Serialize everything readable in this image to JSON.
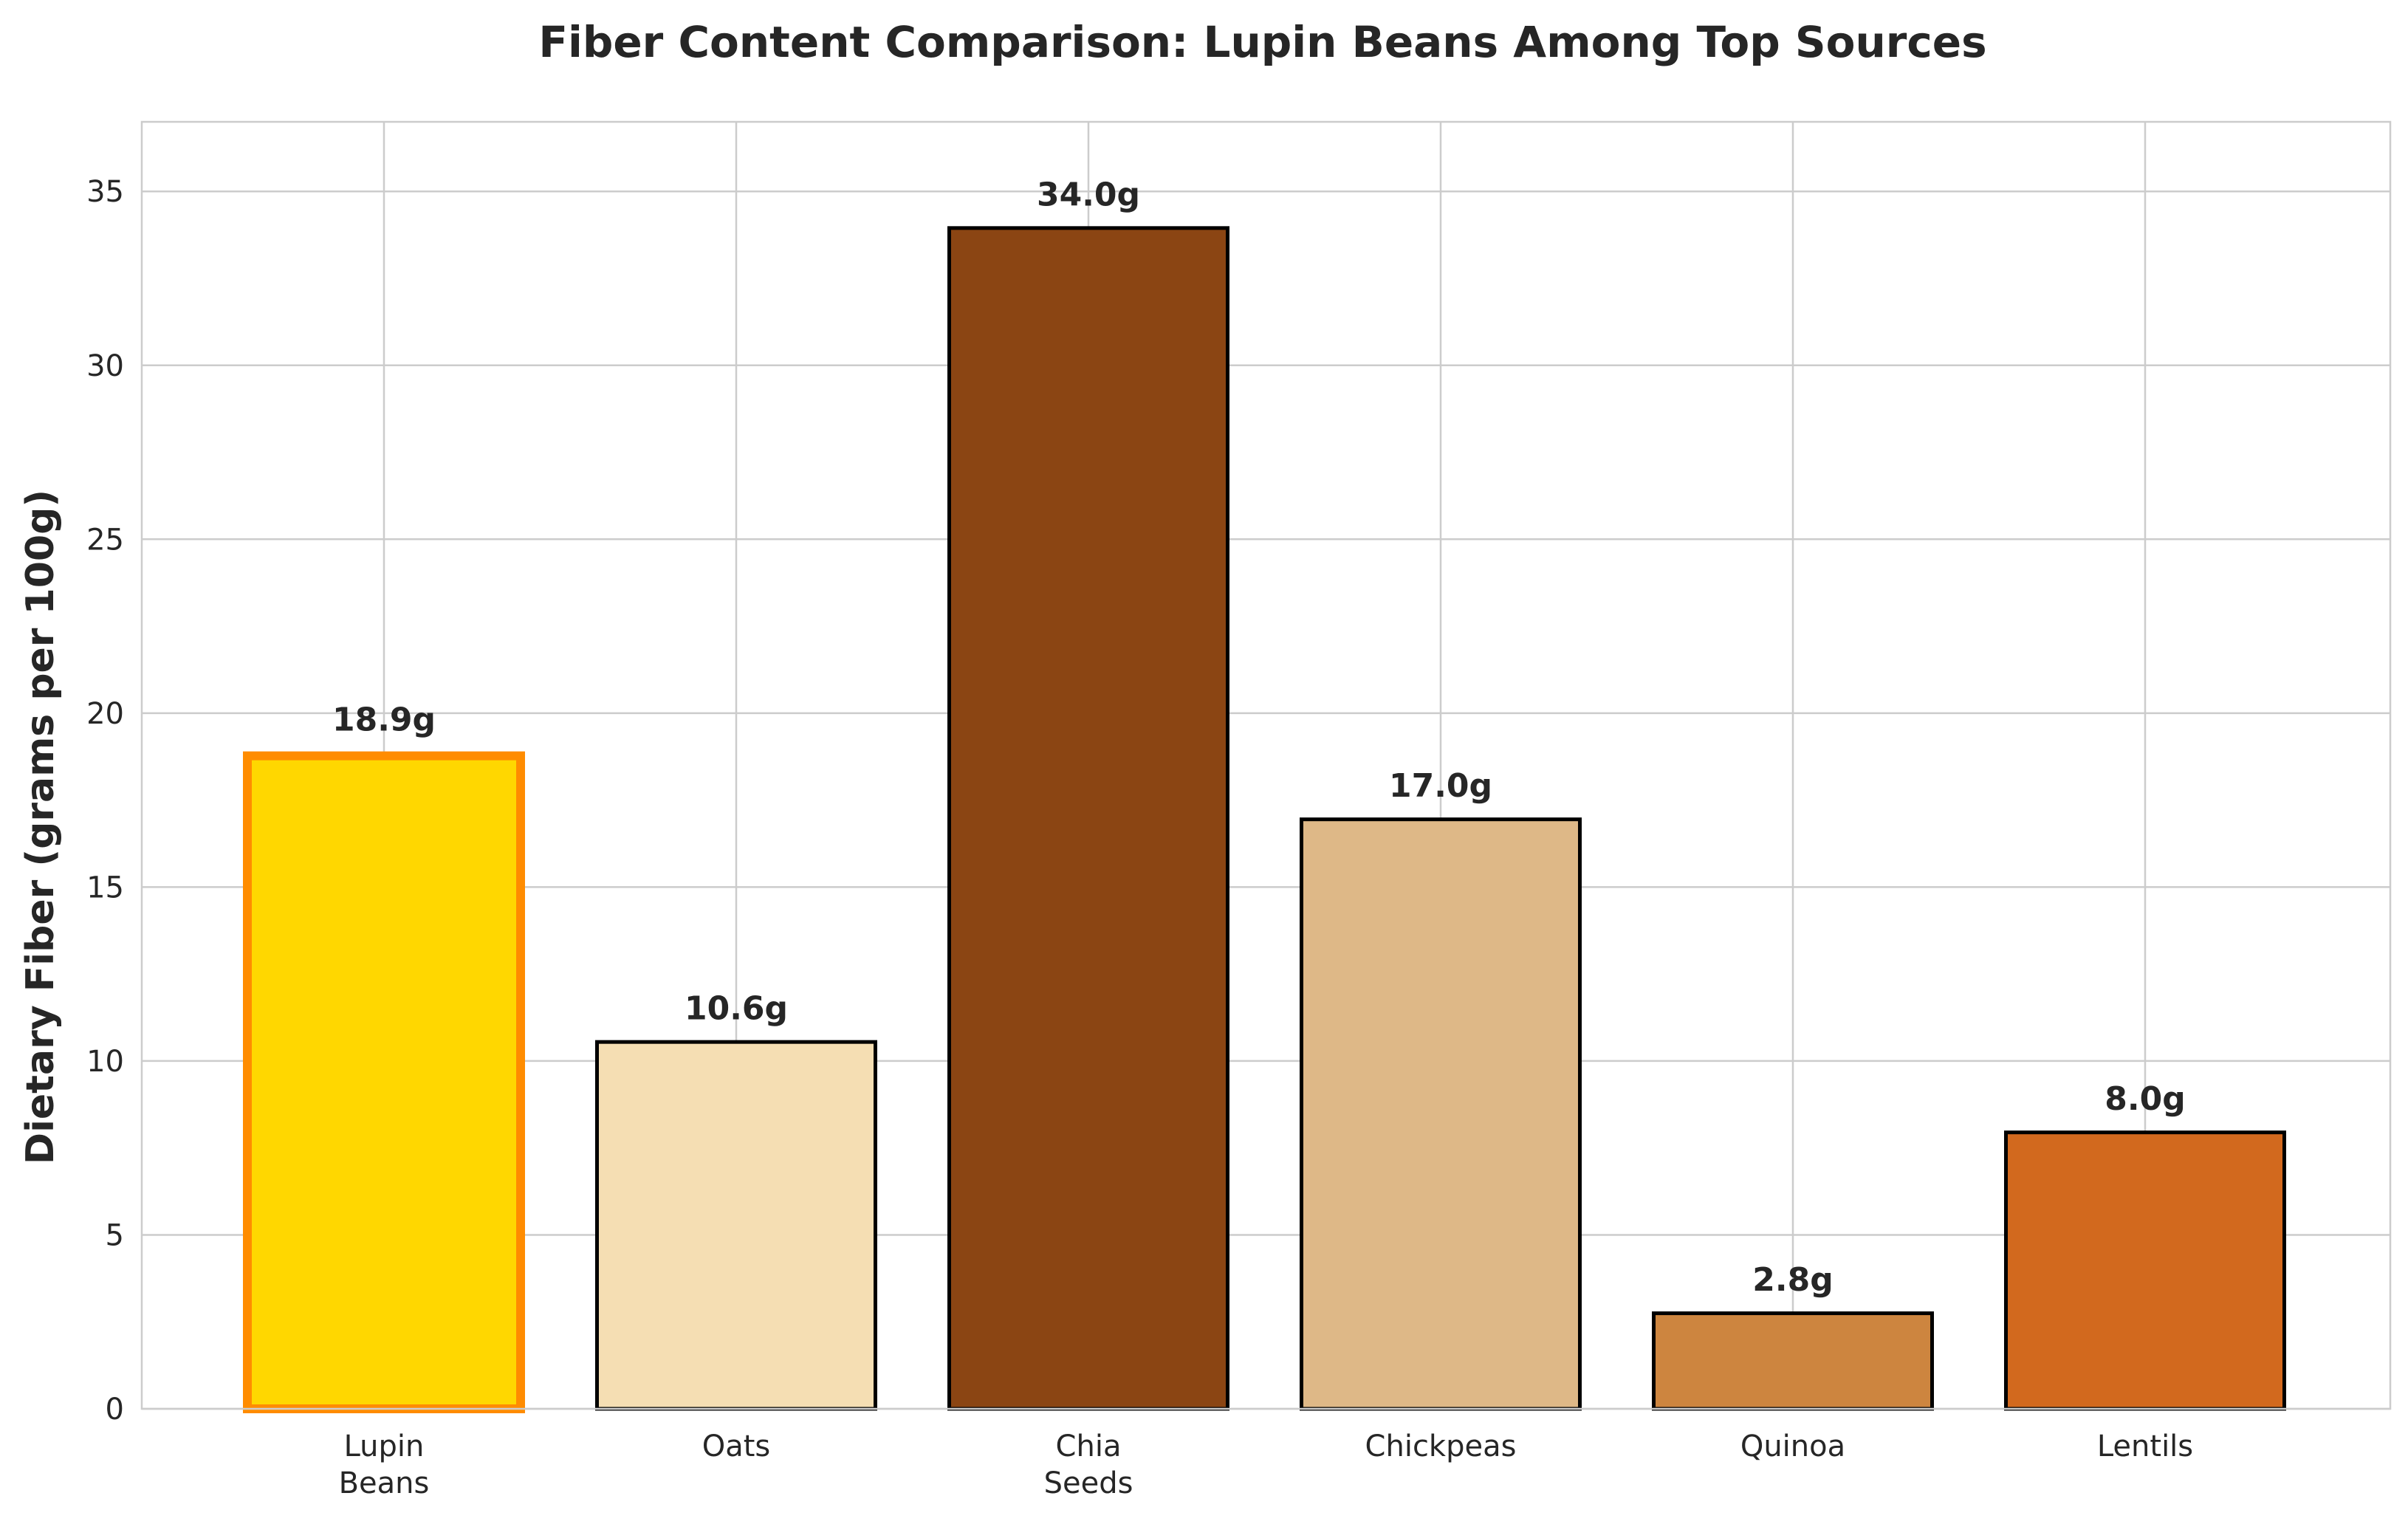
{
  "chart_data": {
    "type": "bar",
    "title": "Fiber Content Comparison: Lupin Beans Among Top Sources",
    "xlabel": "",
    "ylabel": "Dietary Fiber (grams per 100g)",
    "ylim": [
      0,
      37
    ],
    "yticks": [
      0,
      5,
      10,
      15,
      20,
      25,
      30,
      35
    ],
    "grid": true,
    "categories": [
      [
        "Lupin",
        "Beans"
      ],
      [
        "Oats"
      ],
      [
        "Chia",
        "Seeds"
      ],
      [
        "Chickpeas"
      ],
      [
        "Quinoa"
      ],
      [
        "Lentils"
      ]
    ],
    "values": [
      18.9,
      10.6,
      34.0,
      17.0,
      2.8,
      8.0
    ],
    "data_labels": [
      "18.9g",
      "10.6g",
      "34.0g",
      "17.0g",
      "2.8g",
      "8.0g"
    ],
    "colors": [
      "#FFD700",
      "#F5DEB3",
      "#8B4513",
      "#DEB887",
      "#CD853F",
      "#D2691E"
    ],
    "edge_colors": [
      "#FF8C00",
      "#000000",
      "#000000",
      "#000000",
      "#000000",
      "#000000"
    ],
    "highlighted_index": 0
  }
}
